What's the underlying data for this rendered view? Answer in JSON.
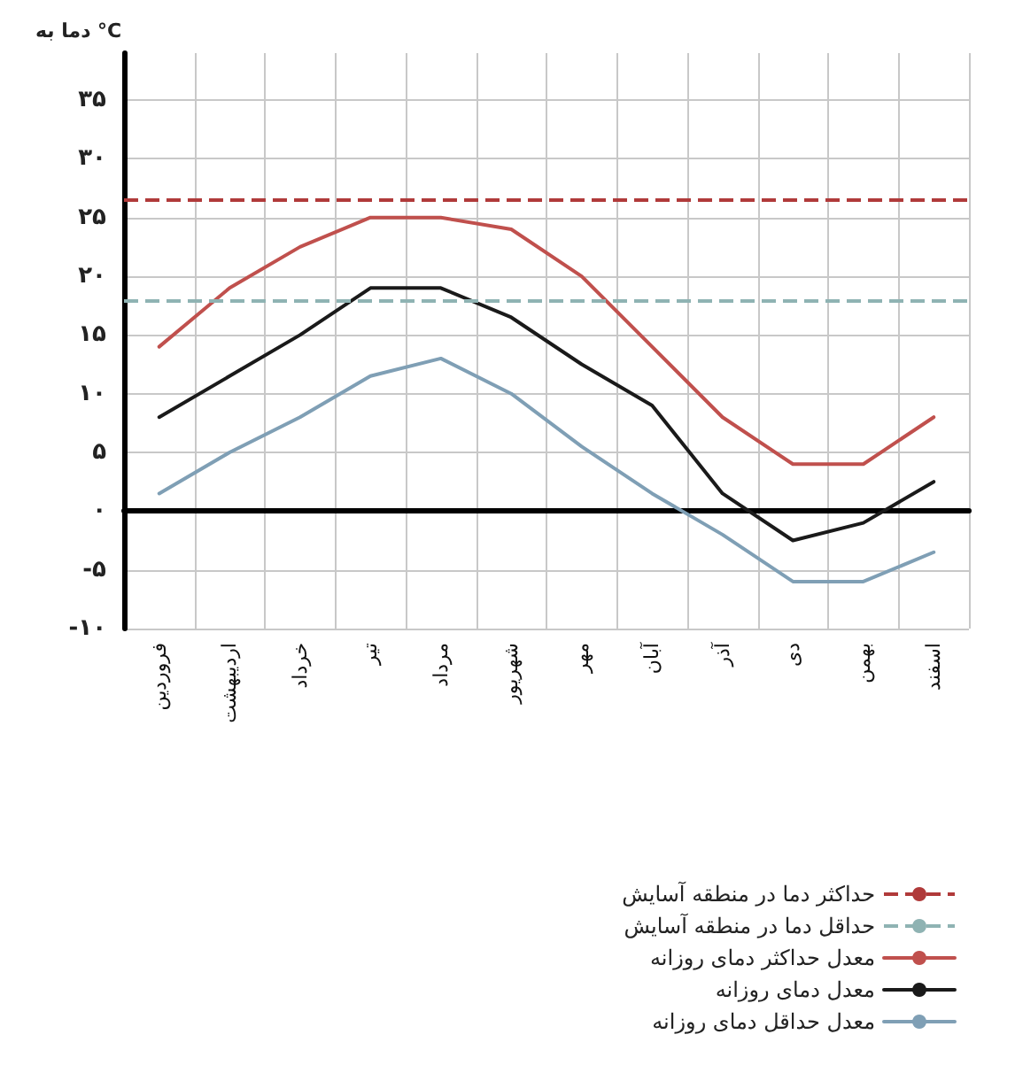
{
  "chart_data": {
    "type": "line",
    "ylabel": "دما به °C",
    "categories": [
      "فروردین",
      "اردیبهشت",
      "خرداد",
      "تیر",
      "مرداد",
      "شهریور",
      "مهر",
      "آبان",
      "آذر",
      "دی",
      "بهمن",
      "اسفند"
    ],
    "series": [
      {
        "name": "معدل حداکثر دمای روزانه",
        "color": "#c0504d",
        "values": [
          14,
          19,
          22.5,
          25,
          25,
          24,
          20,
          14,
          8,
          4,
          4,
          8
        ]
      },
      {
        "name": "معدل دمای روزانه",
        "color": "#1a1a1a",
        "values": [
          8,
          11.5,
          15,
          19,
          19,
          16.5,
          12.5,
          9,
          1.5,
          -2.5,
          -1,
          2.5
        ]
      },
      {
        "name": "معدل حداقل دمای روزانه",
        "color": "#7f9fb5",
        "values": [
          1.5,
          5,
          8,
          11.5,
          13,
          10,
          5.5,
          1.5,
          -2,
          -6,
          -6,
          -3.5
        ]
      }
    ],
    "ref_lines": [
      {
        "axis": "y",
        "value": 26.5,
        "label": "حداکثر دما در منطقه آسایش",
        "color": "#b03a3a",
        "line_style": "dashed"
      },
      {
        "axis": "y",
        "value": 18,
        "label": "حداقل دما در منطقه آسایش",
        "color": "#8fb3b3",
        "line_style": "dashed"
      }
    ],
    "ylim": [
      -10,
      39
    ],
    "yticks": [
      {
        "value": -10,
        "label": "-۱۰"
      },
      {
        "value": -5,
        "label": "-۵"
      },
      {
        "value": 0,
        "label": "۰"
      },
      {
        "value": 5,
        "label": "۵"
      },
      {
        "value": 10,
        "label": "۱۰"
      },
      {
        "value": 15,
        "label": "۱۵"
      },
      {
        "value": 20,
        "label": "۲۰"
      },
      {
        "value": 25,
        "label": "۲۵"
      },
      {
        "value": 30,
        "label": "۳۰"
      },
      {
        "value": 35,
        "label": "۳۵"
      }
    ],
    "grid": true,
    "legend": "bottom right",
    "marker": "none",
    "line_style": "solid"
  }
}
